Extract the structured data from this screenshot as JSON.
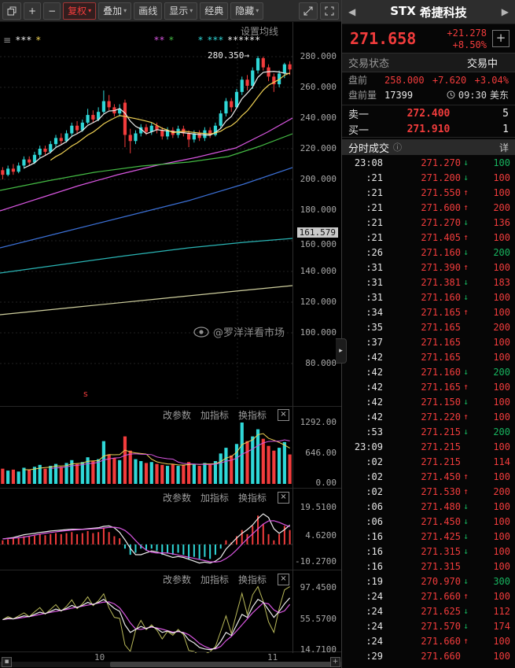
{
  "icons": {
    "caret": "▾",
    "close": "×",
    "info": "ⓘ",
    "nav_prev": "◀",
    "nav_next": "▶",
    "add": "+",
    "handle": "▸"
  },
  "toolbar": {
    "zoom_in": "+",
    "zoom_out": "−",
    "fuquan": "复权",
    "overlay": "叠加",
    "draw": "画线",
    "display": "显示",
    "classic": "经典",
    "hide": "隐藏"
  },
  "chart": {
    "settings": "设置均线",
    "annotation": "280.350",
    "annotation_pointer": "→",
    "tag": "161.579",
    "watermark": "@罗洋洋看市场",
    "sell_marker": "s",
    "x_labels": [
      "10",
      "11"
    ],
    "y_ticks": [
      "280.000",
      "260.000",
      "240.000",
      "220.000",
      "200.000",
      "180.000",
      "160.000",
      "140.000",
      "120.000",
      "100.000",
      "80.000"
    ],
    "legend": [
      {
        "x": 4,
        "parts": [
          {
            "t": "≡ ",
            "c": "#9a9a9a"
          },
          {
            "t": "***",
            "c": "#ececec"
          },
          {
            "t": " *",
            "c": "#f0d254"
          }
        ]
      },
      {
        "x": 196,
        "parts": [
          {
            "t": "**",
            "c": "#d856e0"
          },
          {
            "t": " *",
            "c": "#44bb44"
          }
        ]
      },
      {
        "x": 252,
        "parts": [
          {
            "t": "* ***",
            "c": "#2fd8d8"
          },
          {
            "t": " ******",
            "c": "#ececec"
          }
        ]
      }
    ],
    "candles": [
      [
        206,
        203,
        208,
        200
      ],
      [
        203,
        207,
        209,
        202
      ],
      [
        207,
        205,
        210,
        203
      ],
      [
        205,
        209,
        211,
        204
      ],
      [
        209,
        213,
        215,
        207
      ],
      [
        213,
        211,
        215,
        209
      ],
      [
        211,
        216,
        218,
        210
      ],
      [
        216,
        220,
        222,
        214
      ],
      [
        220,
        218,
        222,
        216
      ],
      [
        218,
        223,
        225,
        217
      ],
      [
        223,
        227,
        229,
        221
      ],
      [
        227,
        225,
        230,
        223
      ],
      [
        225,
        230,
        232,
        224
      ],
      [
        230,
        235,
        237,
        228
      ],
      [
        235,
        232,
        238,
        230
      ],
      [
        232,
        237,
        239,
        231
      ],
      [
        237,
        242,
        246,
        236
      ],
      [
        242,
        239,
        245,
        237
      ],
      [
        239,
        244,
        247,
        238
      ],
      [
        244,
        251,
        258,
        243
      ],
      [
        251,
        247,
        255,
        245
      ],
      [
        247,
        243,
        249,
        241
      ],
      [
        243,
        246,
        249,
        241
      ],
      [
        250,
        229,
        252,
        221
      ],
      [
        229,
        225,
        233,
        217
      ],
      [
        225,
        230,
        232,
        223
      ],
      [
        230,
        234,
        236,
        228
      ],
      [
        234,
        231,
        236,
        229
      ],
      [
        231,
        235,
        237,
        229
      ],
      [
        235,
        232,
        237,
        230
      ],
      [
        232,
        228,
        234,
        226
      ],
      [
        228,
        232,
        234,
        226
      ],
      [
        232,
        229,
        234,
        227
      ],
      [
        229,
        233,
        235,
        227
      ],
      [
        233,
        230,
        235,
        228
      ],
      [
        230,
        226,
        232,
        221
      ],
      [
        226,
        230,
        232,
        224
      ],
      [
        230,
        227,
        232,
        225
      ],
      [
        227,
        232,
        234,
        225
      ],
      [
        232,
        229,
        234,
        227
      ],
      [
        229,
        235,
        237,
        228
      ],
      [
        235,
        243,
        245,
        233
      ],
      [
        243,
        251,
        253,
        241
      ],
      [
        251,
        247,
        253,
        244
      ],
      [
        247,
        257,
        259,
        246
      ],
      [
        257,
        265,
        267,
        255
      ],
      [
        265,
        261,
        268,
        258
      ],
      [
        261,
        271,
        273,
        259
      ],
      [
        271,
        279,
        280.35,
        269
      ],
      [
        279,
        273,
        280,
        271
      ],
      [
        273,
        267,
        275,
        264
      ],
      [
        267,
        262,
        269,
        257
      ],
      [
        262,
        269,
        271,
        260
      ],
      [
        269,
        275,
        276,
        266
      ],
      [
        275,
        271.658,
        277,
        268
      ]
    ],
    "volumes": [
      320,
      280,
      300,
      260,
      340,
      300,
      360,
      400,
      320,
      380,
      420,
      360,
      440,
      500,
      420,
      460,
      560,
      480,
      520,
      900,
      620,
      540,
      500,
      1000,
      700,
      520,
      480,
      440,
      460,
      420,
      400,
      380,
      420,
      380,
      400,
      460,
      420,
      380,
      440,
      400,
      480,
      640,
      760,
      600,
      840,
      1292,
      900,
      1000,
      1150,
      950,
      800,
      700,
      760,
      880,
      620
    ],
    "macd": [
      2,
      2.5,
      3,
      3.5,
      4,
      3.8,
      4.2,
      5,
      4.5,
      5,
      5.5,
      5,
      5.5,
      6,
      5,
      5.5,
      6.5,
      5.5,
      6,
      8,
      6,
      4,
      3,
      -2,
      -5,
      -4,
      -2,
      -3,
      -2,
      -3,
      -5,
      -4,
      -5,
      -4,
      -5,
      -7,
      -6,
      -7,
      -6,
      -7,
      -5,
      -2,
      2,
      1,
      4,
      7,
      5,
      9,
      14,
      10,
      5,
      2,
      5,
      9,
      7
    ],
    "kdj_k": [
      55,
      57,
      56,
      58,
      60,
      59,
      62,
      65,
      63,
      66,
      69,
      67,
      70,
      74,
      71,
      74,
      78,
      75,
      78,
      82,
      76,
      70,
      66,
      48,
      38,
      42,
      46,
      43,
      46,
      43,
      38,
      40,
      37,
      40,
      37,
      28,
      24,
      18,
      16,
      15,
      17,
      26,
      38,
      34,
      48,
      62,
      58,
      72,
      82,
      78,
      68,
      58,
      66,
      76,
      84
    ],
    "overlays": [
      {
        "name": "ma20",
        "color": "#d856e0",
        "pts": [
          [
            0,
            223
          ],
          [
            50,
            207
          ],
          [
            100,
            191
          ],
          [
            150,
            177
          ],
          [
            200,
            165
          ],
          [
            250,
            155
          ],
          [
            300,
            143
          ],
          [
            340,
            123
          ],
          [
            372,
            105
          ]
        ]
      },
      {
        "name": "ma60",
        "color": "#44bb44",
        "pts": [
          [
            0,
            197
          ],
          [
            60,
            185
          ],
          [
            120,
            174
          ],
          [
            180,
            166
          ],
          [
            240,
            161
          ],
          [
            290,
            154
          ],
          [
            330,
            141
          ],
          [
            372,
            125
          ]
        ]
      },
      {
        "name": "ma120",
        "color": "#3b6fd4",
        "pts": [
          [
            0,
            270
          ],
          [
            80,
            250
          ],
          [
            160,
            230
          ],
          [
            240,
            210
          ],
          [
            310,
            189
          ],
          [
            372,
            168
          ]
        ]
      },
      {
        "name": "ma200",
        "color": "#2ab5b5",
        "pts": [
          [
            0,
            302
          ],
          [
            80,
            291
          ],
          [
            160,
            280
          ],
          [
            240,
            270
          ],
          [
            310,
            263
          ],
          [
            372,
            258
          ]
        ]
      },
      {
        "name": "ma250",
        "color": "#cfcf9e",
        "pts": [
          [
            0,
            355
          ],
          [
            100,
            345
          ],
          [
            200,
            335
          ],
          [
            300,
            325
          ],
          [
            372,
            318
          ]
        ]
      }
    ]
  },
  "panes": [
    {
      "tools": [
        "改参数",
        "加指标",
        "换指标"
      ],
      "axis": [
        "1292.00",
        "646.00",
        "0.00"
      ]
    },
    {
      "tools": [
        "改参数",
        "加指标",
        "换指标"
      ],
      "axis": [
        "19.5100",
        "4.6200",
        "-10.2700"
      ]
    },
    {
      "tools": [
        "改参数",
        "加指标",
        "换指标"
      ],
      "axis": [
        "97.4500",
        "55.5700",
        "14.7100"
      ]
    }
  ],
  "quote": {
    "symbol": "STX",
    "name": "希捷科技",
    "price": "271.658",
    "change": "+21.278",
    "pct": "+8.50%",
    "status_label": "交易状态",
    "status_value": "交易中",
    "pre_label": "盘前",
    "pre_price": "258.000",
    "pre_change": "+7.620",
    "pre_pct": "+3.04%",
    "prevol_label": "盘前量",
    "prevol": "17399",
    "session_time": "09:30",
    "session_tz": "美东",
    "ask_label": "卖一",
    "ask_price": "272.400",
    "ask_size": "5",
    "bid_label": "买一",
    "bid_price": "271.910",
    "bid_size": "1",
    "tape_title": "分时成交",
    "tape_detail": "详",
    "arrow_up": "↑",
    "arrow_down": "↓",
    "trades": [
      {
        "t": "23:08",
        "p": "271.270",
        "a": "d",
        "v": "100",
        "vc": "g"
      },
      {
        "t": ":21",
        "p": "271.200",
        "a": "d",
        "v": "100",
        "vc": "r"
      },
      {
        "t": ":21",
        "p": "271.550",
        "a": "u",
        "v": "100",
        "vc": "r"
      },
      {
        "t": ":21",
        "p": "271.600",
        "a": "u",
        "v": "200",
        "vc": "r"
      },
      {
        "t": ":21",
        "p": "271.270",
        "a": "d",
        "v": "136",
        "vc": "r"
      },
      {
        "t": ":21",
        "p": "271.405",
        "a": "u",
        "v": "100",
        "vc": "r"
      },
      {
        "t": ":26",
        "p": "271.160",
        "a": "d",
        "v": "200",
        "vc": "g"
      },
      {
        "t": ":31",
        "p": "271.390",
        "a": "u",
        "v": "100",
        "vc": "r"
      },
      {
        "t": ":31",
        "p": "271.381",
        "a": "d",
        "v": "183",
        "vc": "r"
      },
      {
        "t": ":31",
        "p": "271.160",
        "a": "d",
        "v": "100",
        "vc": "r"
      },
      {
        "t": ":34",
        "p": "271.165",
        "a": "u",
        "v": "100",
        "vc": "r"
      },
      {
        "t": ":35",
        "p": "271.165",
        "a": "",
        "v": "200",
        "vc": "r"
      },
      {
        "t": ":37",
        "p": "271.165",
        "a": "",
        "v": "100",
        "vc": "r"
      },
      {
        "t": ":42",
        "p": "271.165",
        "a": "",
        "v": "100",
        "vc": "r"
      },
      {
        "t": ":42",
        "p": "271.160",
        "a": "d",
        "v": "200",
        "vc": "g"
      },
      {
        "t": ":42",
        "p": "271.165",
        "a": "u",
        "v": "100",
        "vc": "r"
      },
      {
        "t": ":42",
        "p": "271.150",
        "a": "d",
        "v": "100",
        "vc": "r"
      },
      {
        "t": ":42",
        "p": "271.220",
        "a": "u",
        "v": "100",
        "vc": "r"
      },
      {
        "t": ":53",
        "p": "271.215",
        "a": "d",
        "v": "200",
        "vc": "g"
      },
      {
        "t": "23:09",
        "p": "271.215",
        "a": "",
        "v": "100",
        "vc": "r"
      },
      {
        "t": ":02",
        "p": "271.215",
        "a": "",
        "v": "114",
        "vc": "r"
      },
      {
        "t": ":02",
        "p": "271.450",
        "a": "u",
        "v": "100",
        "vc": "r"
      },
      {
        "t": ":02",
        "p": "271.530",
        "a": "u",
        "v": "200",
        "vc": "r"
      },
      {
        "t": ":06",
        "p": "271.480",
        "a": "d",
        "v": "100",
        "vc": "r"
      },
      {
        "t": ":06",
        "p": "271.450",
        "a": "d",
        "v": "100",
        "vc": "r"
      },
      {
        "t": ":16",
        "p": "271.425",
        "a": "d",
        "v": "100",
        "vc": "r"
      },
      {
        "t": ":16",
        "p": "271.315",
        "a": "d",
        "v": "100",
        "vc": "r"
      },
      {
        "t": ":16",
        "p": "271.315",
        "a": "",
        "v": "100",
        "vc": "r"
      },
      {
        "t": ":19",
        "p": "270.970",
        "a": "d",
        "v": "300",
        "vc": "g"
      },
      {
        "t": ":24",
        "p": "271.660",
        "a": "u",
        "v": "100",
        "vc": "r"
      },
      {
        "t": ":24",
        "p": "271.625",
        "a": "d",
        "v": "112",
        "vc": "r"
      },
      {
        "t": ":24",
        "p": "271.570",
        "a": "d",
        "v": "174",
        "vc": "r"
      },
      {
        "t": ":24",
        "p": "271.660",
        "a": "u",
        "v": "100",
        "vc": "r"
      },
      {
        "t": ":29",
        "p": "271.660",
        "a": "",
        "v": "100",
        "vc": "r"
      }
    ]
  }
}
